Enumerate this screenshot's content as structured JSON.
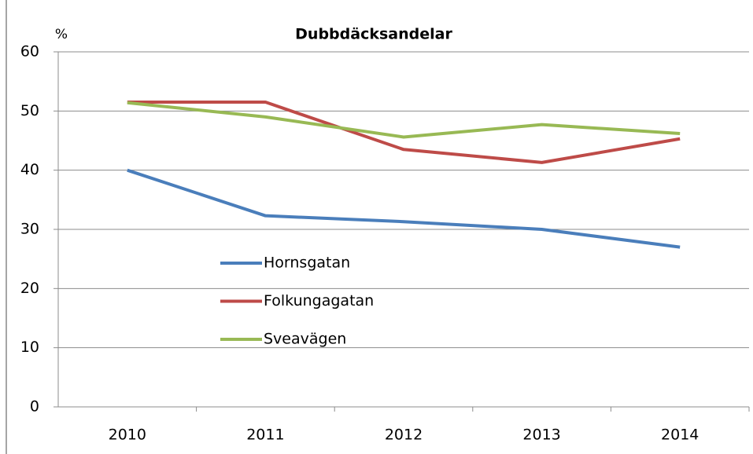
{
  "chart_data": {
    "type": "line",
    "title": "Dubbdäcksandelar",
    "y_label": "%",
    "categories": [
      "2010",
      "2011",
      "2012",
      "2013",
      "2014"
    ],
    "series": [
      {
        "name": "Hornsgatan",
        "color": "#4a7ebb",
        "values": [
          40,
          32.3,
          31.3,
          30,
          27
        ]
      },
      {
        "name": "Folkungagatan",
        "color": "#be4b48",
        "values": [
          51.5,
          51.5,
          43.5,
          41.3,
          45.3
        ]
      },
      {
        "name": "Sveavägen",
        "color": "#98b954",
        "values": [
          51.4,
          49,
          45.6,
          47.7,
          46.2
        ]
      }
    ],
    "ylim": [
      0,
      60
    ],
    "yticks": [
      0,
      10,
      20,
      30,
      40,
      50,
      60
    ],
    "grid": true
  }
}
